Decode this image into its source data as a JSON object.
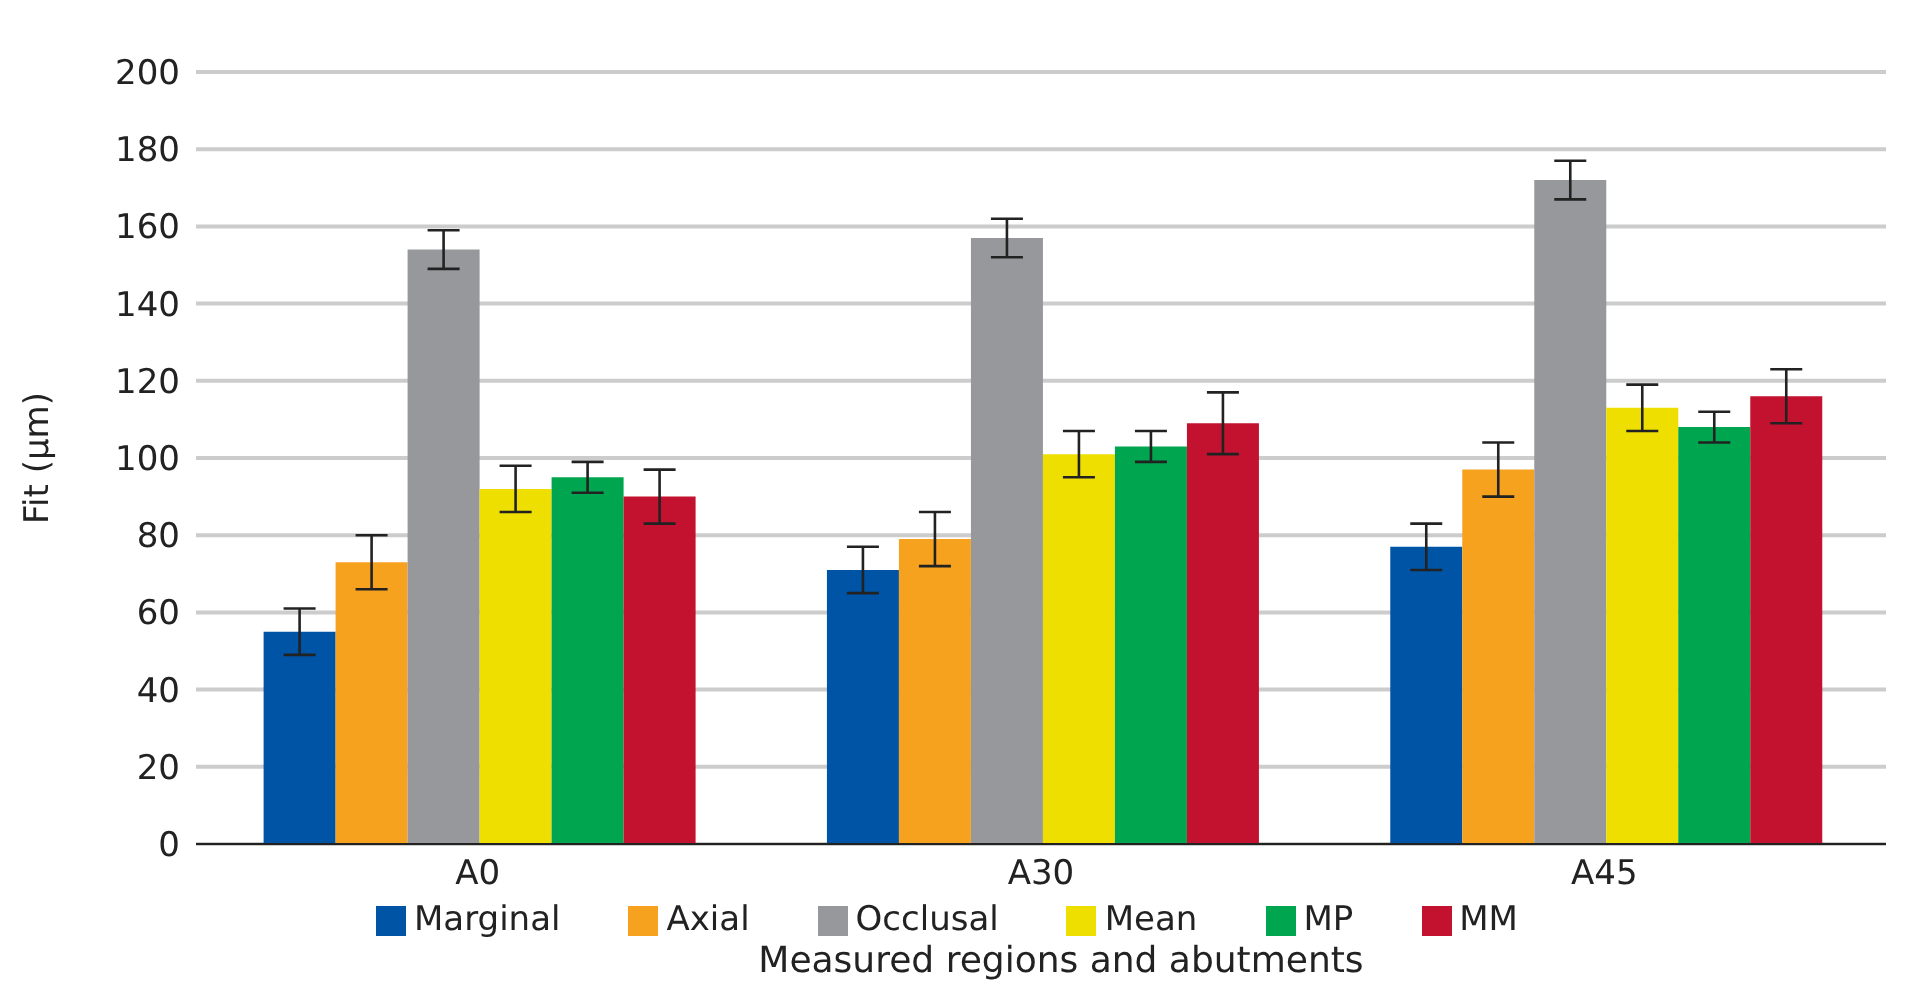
{
  "chart_data": {
    "type": "bar",
    "xlabel": "Measured regions and abutments",
    "ylabel": "Fit (µm)",
    "categories": [
      "A0",
      "A30",
      "A45"
    ],
    "series": [
      {
        "name": "Marginal",
        "color": "#0054a6",
        "values": [
          55,
          71,
          77
        ],
        "errors": [
          6,
          6,
          6
        ]
      },
      {
        "name": "Axial",
        "color": "#f7a21e",
        "values": [
          73,
          79,
          97
        ],
        "errors": [
          7,
          7,
          7
        ]
      },
      {
        "name": "Occlusal",
        "color": "#97989b",
        "values": [
          154,
          157,
          172
        ],
        "errors": [
          5,
          5,
          5
        ]
      },
      {
        "name": "Mean",
        "color": "#eedf00",
        "values": [
          92,
          101,
          113
        ],
        "errors": [
          6,
          6,
          6
        ]
      },
      {
        "name": "MP",
        "color": "#00a550",
        "values": [
          95,
          103,
          108
        ],
        "errors": [
          4,
          4,
          4
        ]
      },
      {
        "name": "MM",
        "color": "#c31230",
        "values": [
          90,
          109,
          116
        ],
        "errors": [
          7,
          8,
          7
        ]
      }
    ],
    "ylim": [
      0,
      200
    ],
    "yticks": [
      0,
      20,
      40,
      60,
      80,
      100,
      120,
      140,
      160,
      180,
      200
    ],
    "grid": "y",
    "legend": "bottom"
  }
}
